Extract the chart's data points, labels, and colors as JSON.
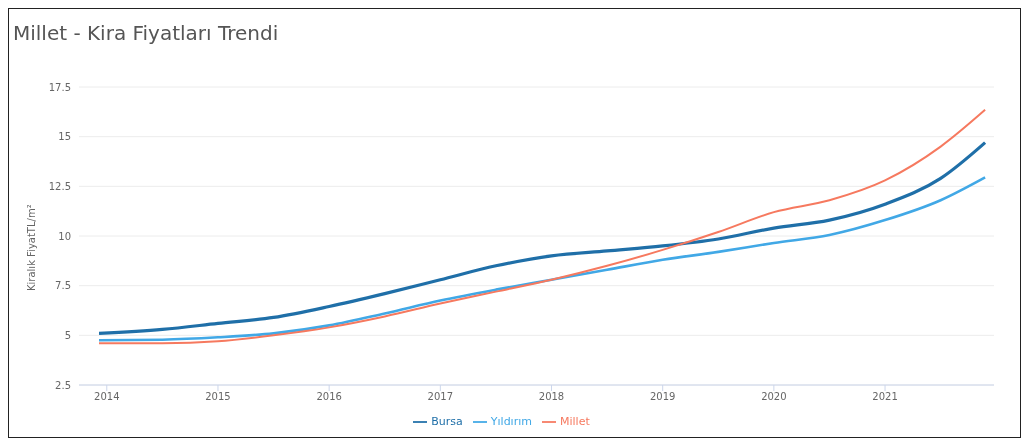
{
  "chart_data": {
    "type": "line",
    "title": "Millet - Kira Fiyatları Trendi",
    "ylabel": "Kiralık FiyatTL/m²",
    "x": [
      2013.93,
      2014.5,
      2015,
      2015.5,
      2016,
      2016.5,
      2017,
      2017.5,
      2018,
      2018.5,
      2019,
      2019.5,
      2020,
      2020.5,
      2021,
      2021.5,
      2021.9
    ],
    "series": [
      {
        "name": "Bursa",
        "color": "#1f6fa8",
        "values": [
          5.1,
          5.3,
          5.6,
          5.9,
          6.45,
          7.1,
          7.8,
          8.5,
          9.0,
          9.25,
          9.5,
          9.85,
          10.4,
          10.8,
          11.6,
          12.9,
          14.7
        ]
      },
      {
        "name": "Yıldırım",
        "color": "#41a8e6",
        "values": [
          4.75,
          4.78,
          4.9,
          5.1,
          5.5,
          6.1,
          6.75,
          7.3,
          7.8,
          8.3,
          8.8,
          9.2,
          9.65,
          10.05,
          10.8,
          11.8,
          12.95
        ]
      },
      {
        "name": "Millet",
        "color": "#f6795f",
        "values": [
          4.6,
          4.6,
          4.7,
          5.0,
          5.4,
          5.95,
          6.6,
          7.2,
          7.8,
          8.5,
          9.3,
          10.2,
          11.2,
          11.8,
          12.8,
          14.5,
          16.35
        ]
      }
    ],
    "xlim": [
      2013.75,
      2021.98
    ],
    "xticks": [
      2014,
      2015,
      2016,
      2017,
      2018,
      2019,
      2020,
      2021
    ],
    "ylim": [
      2.5,
      17.5
    ],
    "yticks": [
      2.5,
      5,
      7.5,
      10,
      12.5,
      15,
      17.5
    ],
    "grid": "y",
    "legend": "bottom",
    "marker": "none",
    "line_style": "solid"
  }
}
